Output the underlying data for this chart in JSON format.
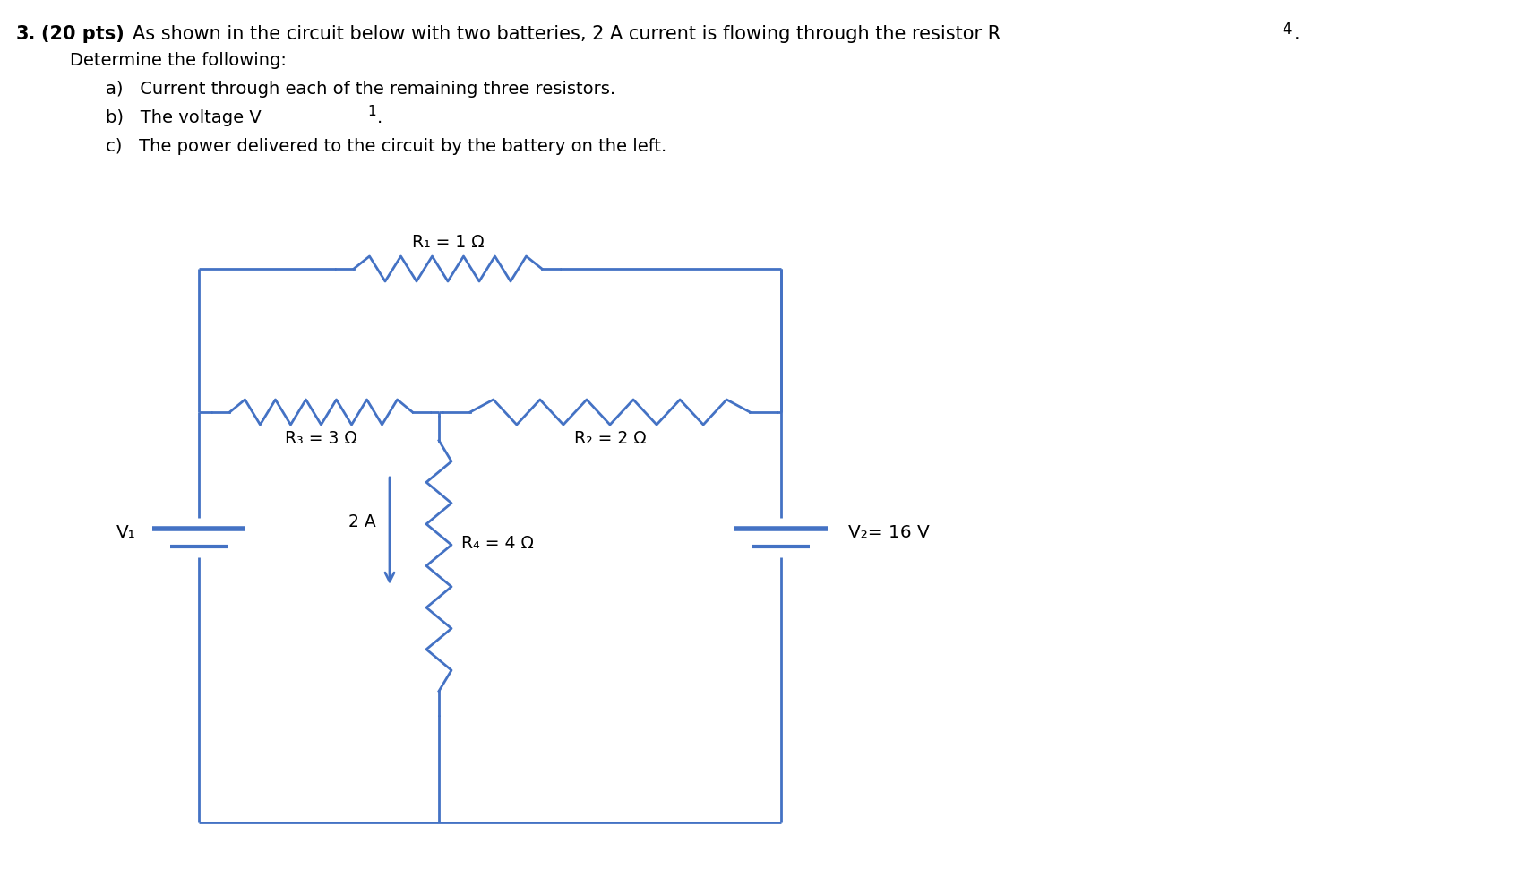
{
  "bg_color": "#ffffff",
  "wire_color": "#4472c4",
  "text_color": "#000000",
  "R1_label": "R₁ = 1 Ω",
  "R2_label": "R₂ = 2 Ω",
  "R3_label": "R₃ = 3 Ω",
  "R4_label": "R₄ = 4 Ω",
  "V1_label": "V₁",
  "V2_label": "V₂= 16 V",
  "current_label": "2 A",
  "title_bold_num": "3.",
  "title_bold_pts": "(20 pts)",
  "title_rest": "As shown in the circuit below with two batteries, 2 A current is flowing through the resistor R",
  "title_sub4": "4",
  "title_dot": ".",
  "line2": "Determine the following:",
  "sub_a": "a)   Current through each of the remaining three resistors.",
  "sub_b_main": "b)   The voltage V",
  "sub_b_sub": "1",
  "sub_b_dot": ".",
  "sub_c": "c)   The power delivered to the circuit by the battery on the left.",
  "font_size_title": 15,
  "font_size_body": 14,
  "font_size_circuit": 13.5
}
